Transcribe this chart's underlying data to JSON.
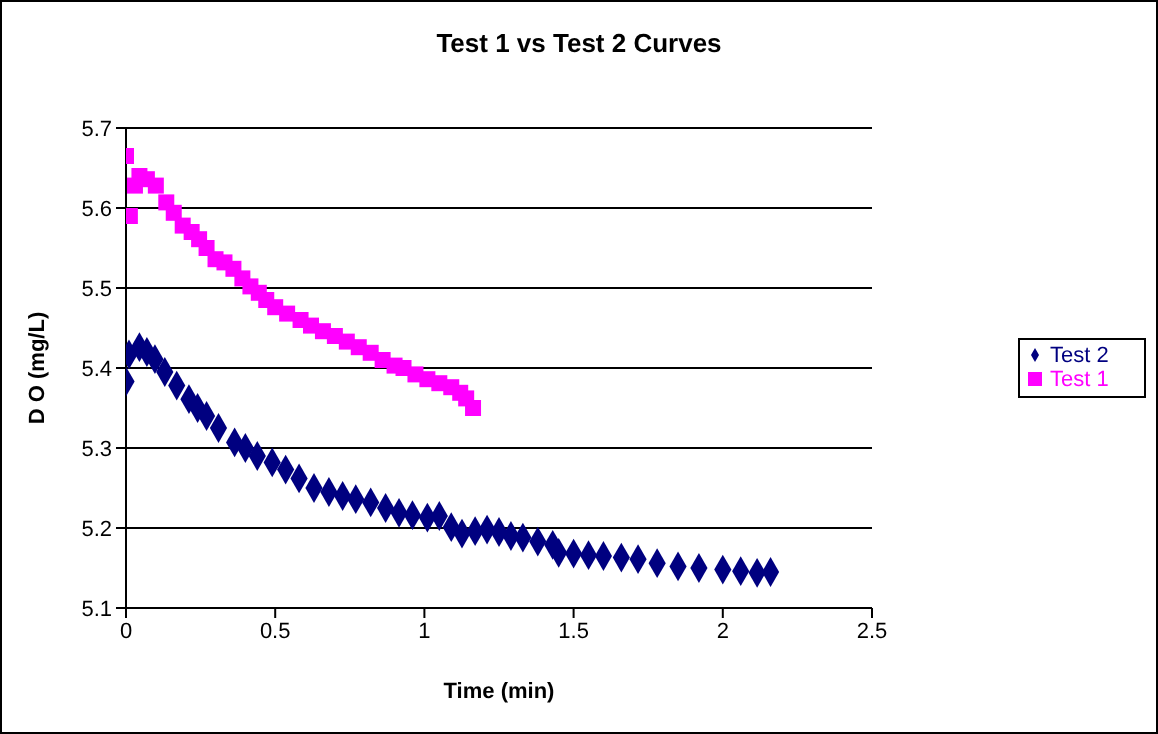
{
  "chart_data": {
    "type": "scatter",
    "title": "Test 1 vs Test 2 Curves",
    "xlabel": "Time (min)",
    "ylabel": "D O (mg/L)",
    "xlim": [
      0,
      2.5
    ],
    "xticks": [
      0,
      0.5,
      1,
      1.5,
      2,
      2.5
    ],
    "ylim": [
      5.1,
      5.7
    ],
    "yticks": [
      5.1,
      5.2,
      5.3,
      5.4,
      5.5,
      5.6,
      5.7
    ],
    "grid": "y",
    "legend": "right",
    "series": [
      {
        "name": "Test 2",
        "color": "#000080",
        "marker": "diamond",
        "x": [
          0,
          0.01,
          0.045,
          0.07,
          0.097,
          0.13,
          0.17,
          0.211,
          0.24,
          0.27,
          0.31,
          0.364,
          0.4,
          0.44,
          0.49,
          0.535,
          0.58,
          0.63,
          0.68,
          0.726,
          0.77,
          0.82,
          0.87,
          0.915,
          0.96,
          1.01,
          1.05,
          1.09,
          1.126,
          1.17,
          1.21,
          1.25,
          1.29,
          1.33,
          1.38,
          1.43,
          1.45,
          1.5,
          1.55,
          1.6,
          1.66,
          1.716,
          1.78,
          1.85,
          1.92,
          2.0,
          2.06,
          2.115,
          2.16
        ],
        "values": [
          5.383,
          5.417,
          5.426,
          5.42,
          5.411,
          5.395,
          5.378,
          5.361,
          5.35,
          5.34,
          5.325,
          5.307,
          5.3,
          5.29,
          5.282,
          5.273,
          5.262,
          5.25,
          5.245,
          5.24,
          5.236,
          5.232,
          5.225,
          5.219,
          5.216,
          5.213,
          5.215,
          5.201,
          5.193,
          5.196,
          5.198,
          5.195,
          5.19,
          5.188,
          5.183,
          5.179,
          5.169,
          5.168,
          5.166,
          5.165,
          5.163,
          5.161,
          5.156,
          5.152,
          5.15,
          5.148,
          5.146,
          5.144,
          5.145
        ]
      },
      {
        "name": "Test 1",
        "color": "#ff00ff",
        "marker": "square",
        "x": [
          0,
          0.013,
          0.03,
          0.045,
          0.07,
          0.1,
          0.135,
          0.16,
          0.19,
          0.22,
          0.245,
          0.27,
          0.3,
          0.33,
          0.36,
          0.39,
          0.417,
          0.445,
          0.47,
          0.5,
          0.54,
          0.585,
          0.62,
          0.66,
          0.7,
          0.74,
          0.78,
          0.82,
          0.86,
          0.9,
          0.93,
          0.97,
          1.01,
          1.05,
          1.09,
          1.12,
          1.14,
          1.163
        ],
        "values": [
          5.665,
          5.59,
          5.628,
          5.64,
          5.636,
          5.628,
          5.607,
          5.594,
          5.578,
          5.57,
          5.561,
          5.55,
          5.536,
          5.532,
          5.524,
          5.512,
          5.502,
          5.494,
          5.485,
          5.476,
          5.468,
          5.46,
          5.453,
          5.446,
          5.44,
          5.433,
          5.426,
          5.419,
          5.41,
          5.403,
          5.4,
          5.392,
          5.386,
          5.381,
          5.376,
          5.369,
          5.362,
          5.35
        ]
      }
    ]
  }
}
